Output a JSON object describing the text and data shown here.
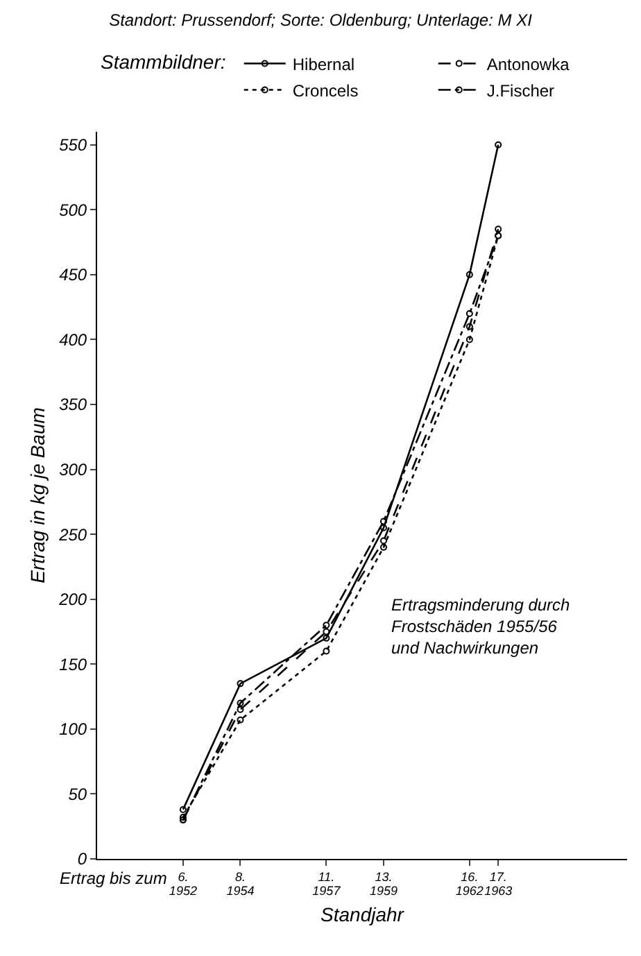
{
  "chart_data": {
    "type": "line",
    "title": "Standort: Prussendorf; Sorte: Oldenburg; Unterlage: M XI",
    "legend_title": "Stammbildner:",
    "xlabel": "Standjahr",
    "ylabel": "Ertrag in kg je Baum",
    "x": [
      6,
      8,
      11,
      13,
      16,
      17
    ],
    "series": [
      {
        "name": "Hibernal",
        "color": "#000000",
        "line_style": "solid",
        "values": [
          38,
          135,
          170,
          255,
          450,
          550
        ]
      },
      {
        "name": "Antonowka",
        "color": "#000000",
        "line_style": "dashed",
        "values": [
          30,
          115,
          175,
          245,
          410,
          485
        ]
      },
      {
        "name": "Croncels",
        "color": "#000000",
        "line_style": "dotted",
        "values": [
          32,
          107,
          160,
          240,
          400,
          480
        ]
      },
      {
        "name": "J.Fischer",
        "color": "#000000",
        "line_style": "dashdot",
        "values": [
          30,
          120,
          180,
          260,
          420,
          480
        ]
      }
    ],
    "xlim": [
      3,
      21.5
    ],
    "xticks": [
      {
        "value": 6,
        "label": "6."
      },
      {
        "value": 8,
        "label": "8."
      },
      {
        "value": 11,
        "label": "11."
      },
      {
        "value": 13,
        "label": "13."
      },
      {
        "value": 16,
        "label": "16."
      },
      {
        "value": 17,
        "label": "17."
      }
    ],
    "x2lim": [
      1949,
      1967.5
    ],
    "x2ticks": [
      1952,
      1954,
      1957,
      1959,
      1962,
      1963
    ],
    "ylim": [
      0,
      560
    ],
    "yticks": [
      0,
      50,
      100,
      150,
      200,
      250,
      300,
      350,
      400,
      450,
      500,
      550
    ],
    "annotations": [
      "Ertragsminderung durch\nFrostschäden 1955/56\nund Nachwirkungen",
      "Ertrag bis zum"
    ],
    "grid": false,
    "legend": "top",
    "marker": "circle"
  }
}
